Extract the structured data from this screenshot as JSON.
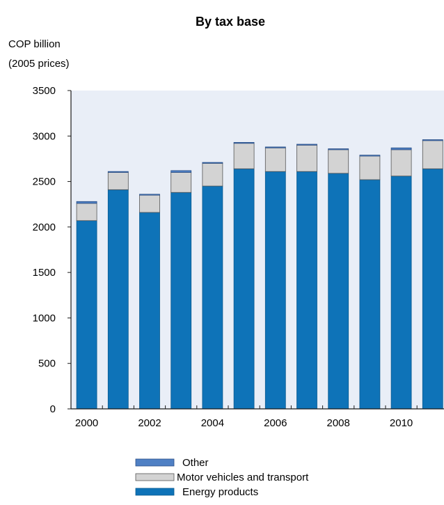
{
  "chart_data": {
    "type": "bar",
    "stacked": true,
    "title": "By tax base",
    "ylabel_line1": "COP billion",
    "ylabel_line2": "(2005 prices)",
    "xlabel": "",
    "ylim": [
      0,
      3500
    ],
    "yticks": [
      0,
      500,
      1000,
      1500,
      2000,
      2500,
      3000,
      3500
    ],
    "categories": [
      "2000",
      "2001",
      "2002",
      "2003",
      "2004",
      "2005",
      "2006",
      "2007",
      "2008",
      "2009",
      "2010",
      "2011"
    ],
    "x_tick_labels": [
      "2000",
      "2002",
      "2004",
      "2006",
      "2008",
      "2010"
    ],
    "series": [
      {
        "name": "Energy products",
        "color": "#0e73b8",
        "values": [
          2070,
          2410,
          2160,
          2380,
          2450,
          2640,
          2610,
          2610,
          2590,
          2520,
          2560,
          2640
        ]
      },
      {
        "name": "Motor vehicles and transport",
        "color": "#d3d3d3",
        "values": [
          190,
          190,
          190,
          220,
          250,
          280,
          260,
          290,
          260,
          260,
          290,
          310
        ]
      },
      {
        "name": "Other",
        "color": "#4f80c4",
        "values": [
          20,
          10,
          10,
          20,
          10,
          10,
          10,
          10,
          10,
          10,
          20,
          10
        ]
      }
    ],
    "grid": false,
    "plot_background": "#e9eef7",
    "legend_placement": "bottom",
    "legend_order": [
      "Other",
      "Motor vehicles and transport",
      "Energy products"
    ]
  }
}
